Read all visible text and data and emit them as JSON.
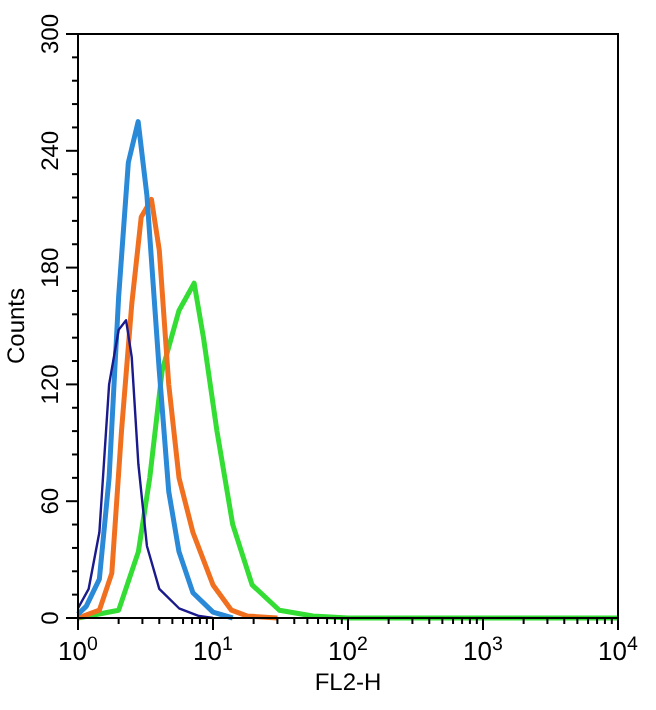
{
  "chart_data": {
    "type": "line",
    "xlabel": "FL2-H",
    "ylabel": "Counts",
    "log": "x",
    "xlim": [
      1,
      10000
    ],
    "ylim": [
      0,
      300
    ],
    "xticks": [
      {
        "value": 1,
        "label": "10$^{0}$"
      },
      {
        "value": 2,
        "label": null
      },
      {
        "value": 3,
        "label": null
      },
      {
        "value": 4,
        "label": null
      },
      {
        "value": 5,
        "label": null
      },
      {
        "value": 6,
        "label": null
      },
      {
        "value": 7,
        "label": null
      },
      {
        "value": 8,
        "label": null
      },
      {
        "value": 9,
        "label": null
      },
      {
        "value": 10,
        "label": "10$^{1}$"
      },
      {
        "value": 20,
        "label": null
      },
      {
        "value": 30,
        "label": null
      },
      {
        "value": 40,
        "label": null
      },
      {
        "value": 50,
        "label": null
      },
      {
        "value": 60,
        "label": null
      },
      {
        "value": 70,
        "label": null
      },
      {
        "value": 80,
        "label": null
      },
      {
        "value": 90,
        "label": null
      },
      {
        "value": 100,
        "label": "10$^{2}$"
      },
      {
        "value": 200,
        "label": null
      },
      {
        "value": 300,
        "label": null
      },
      {
        "value": 400,
        "label": null
      },
      {
        "value": 500,
        "label": null
      },
      {
        "value": 600,
        "label": null
      },
      {
        "value": 700,
        "label": null
      },
      {
        "value": 800,
        "label": null
      },
      {
        "value": 900,
        "label": null
      },
      {
        "value": 1000,
        "label": "10$^{3}$"
      },
      {
        "value": 2000,
        "label": null
      },
      {
        "value": 3000,
        "label": null
      },
      {
        "value": 4000,
        "label": null
      },
      {
        "value": 5000,
        "label": null
      },
      {
        "value": 6000,
        "label": null
      },
      {
        "value": 7000,
        "label": null
      },
      {
        "value": 8000,
        "label": null
      },
      {
        "value": 9000,
        "label": null
      },
      {
        "value": 10000,
        "label": "10$^{4}$"
      }
    ],
    "yticks": [
      0,
      {
        "value": 12,
        "label": null
      },
      {
        "value": 24,
        "label": null
      },
      {
        "value": 36,
        "label": null
      },
      {
        "value": 48,
        "label": null
      },
      60,
      {
        "value": 72,
        "label": null
      },
      {
        "value": 84,
        "label": null
      },
      {
        "value": 96,
        "label": null
      },
      {
        "value": 108,
        "label": null
      },
      120,
      {
        "value": 132,
        "label": null
      },
      {
        "value": 144,
        "label": null
      },
      {
        "value": 156,
        "label": null
      },
      {
        "value": 168,
        "label": null
      },
      180,
      {
        "value": 192,
        "label": null
      },
      {
        "value": 204,
        "label": null
      },
      {
        "value": 216,
        "label": null
      },
      {
        "value": 228,
        "label": null
      },
      240,
      {
        "value": 252,
        "label": null
      },
      {
        "value": 264,
        "label": null
      },
      {
        "value": 276,
        "label": null
      },
      {
        "value": 288,
        "label": null
      },
      300
    ],
    "grid": false,
    "marker": "none",
    "line_style": "solid",
    "series": [
      {
        "color": "#33dd33",
        "x": [
          1,
          2,
          2.8,
          3.4,
          4.2,
          5.6,
          7.25,
          8.5,
          10.7,
          14,
          19.5,
          31,
          55,
          100,
          10000
        ],
        "values": [
          0,
          4,
          34,
          72,
          127,
          158,
          172,
          144,
          96,
          48,
          17,
          4,
          1,
          0,
          0
        ]
      },
      {
        "color": "#f07020",
        "x": [
          1,
          1.44,
          1.78,
          2.1,
          2.5,
          2.94,
          3.5,
          4,
          4.7,
          5.6,
          7.1,
          10,
          13.7,
          18,
          30
        ],
        "values": [
          0,
          4,
          23,
          96,
          161,
          206,
          215,
          189,
          120,
          72,
          44,
          17,
          4,
          1,
          0
        ]
      },
      {
        "color": "#2a8ad8",
        "x": [
          1,
          1.15,
          1.44,
          1.7,
          2,
          2.36,
          2.79,
          3.24,
          4,
          4.7,
          5.6,
          7.1,
          10,
          14
        ],
        "values": [
          2,
          6,
          20,
          72,
          165,
          234,
          255,
          217,
          127,
          65,
          34,
          13,
          3,
          0
        ]
      },
      {
        "color": "#1a1a8c",
        "x": [
          1,
          1.2,
          1.44,
          1.7,
          2,
          2.27,
          2.5,
          2.8,
          3.24,
          4,
          5.6,
          7.9,
          10
        ],
        "values": [
          5,
          15,
          44,
          120,
          148,
          153,
          134,
          79,
          37,
          15,
          5,
          1,
          0
        ]
      }
    ]
  }
}
